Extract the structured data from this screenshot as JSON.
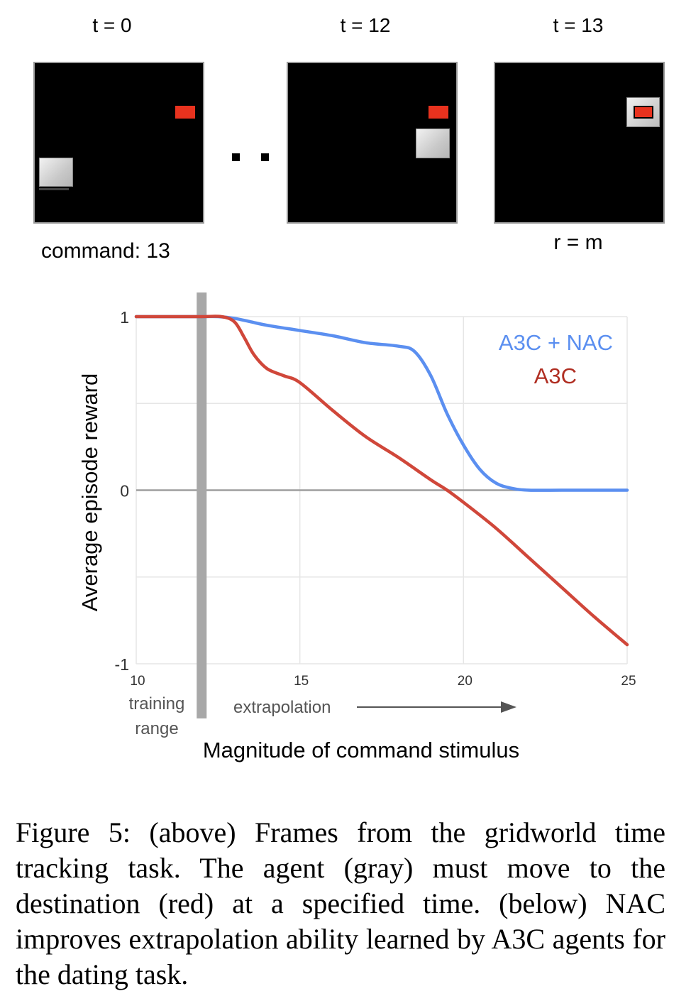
{
  "frames": [
    {
      "time_label": "t = 0",
      "below_label": "command: 13"
    },
    {
      "time_label": "t = 12",
      "below_label": ""
    },
    {
      "time_label": "t = 13",
      "below_label": "r = m"
    }
  ],
  "chart_data": {
    "type": "line",
    "title": "",
    "xlabel": "Magnitude of command stimulus",
    "ylabel": "Average episode reward",
    "xlim": [
      10,
      25
    ],
    "ylim": [
      -1,
      1
    ],
    "x_ticks": [
      10,
      15,
      20,
      25
    ],
    "y_ticks": [
      -1,
      0,
      1
    ],
    "grid": true,
    "legend_position": "top-right",
    "colors": {
      "A3C + NAC": "#5b8ff0",
      "A3C": "#d0473a",
      "training_bar": "#a8a8a8",
      "zero_line": "#9e9e9e",
      "grid": "#e6e6e6"
    },
    "annotations": {
      "training_range_lines": [
        "training",
        "range"
      ],
      "training_boundary_x": 12,
      "extrapolation": "extrapolation"
    },
    "series": [
      {
        "name": "A3C + NAC",
        "x": [
          10,
          11,
          12,
          12.5,
          13,
          13.5,
          14,
          15,
          16,
          17,
          18,
          18.5,
          19,
          19.5,
          20,
          20.5,
          21,
          21.5,
          22,
          23,
          24,
          25
        ],
        "y": [
          1.0,
          1.0,
          1.0,
          1.0,
          0.99,
          0.97,
          0.95,
          0.92,
          0.89,
          0.85,
          0.83,
          0.8,
          0.66,
          0.44,
          0.26,
          0.12,
          0.04,
          0.01,
          0.0,
          0.0,
          0.0,
          0.0
        ]
      },
      {
        "name": "A3C",
        "x": [
          10,
          11,
          12,
          12.6,
          13,
          13.3,
          13.6,
          14,
          14.5,
          15,
          16,
          17,
          18,
          19,
          19.5,
          20,
          21,
          22,
          23,
          24,
          25
        ],
        "y": [
          1.0,
          1.0,
          1.0,
          1.0,
          0.97,
          0.88,
          0.78,
          0.7,
          0.66,
          0.62,
          0.46,
          0.31,
          0.19,
          0.06,
          0.0,
          -0.07,
          -0.22,
          -0.39,
          -0.56,
          -0.73,
          -0.89
        ]
      }
    ]
  },
  "figure_caption": "Figure 5:  (above) Frames from the gridworld time tracking task. The agent (gray) must move to the destination (red) at a specified time. (below) NAC improves extrapolation ability learned by A3C agents for the dating task."
}
